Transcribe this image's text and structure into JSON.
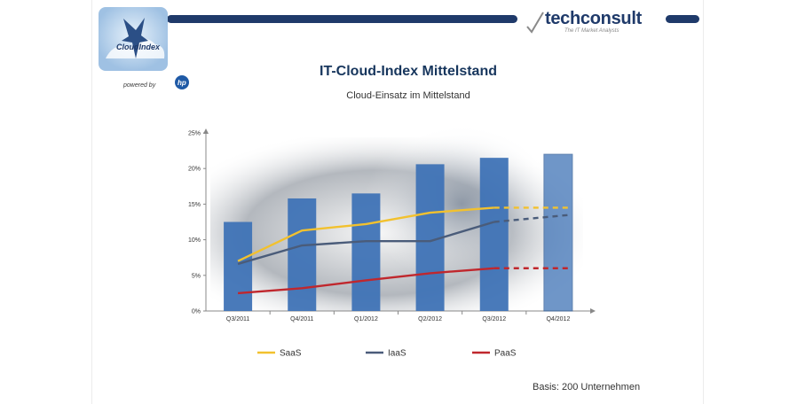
{
  "header": {
    "brand": "techconsult",
    "tagline": "The IT Market Analysts"
  },
  "cloud_logo": {
    "label": "CloudIndex",
    "powered_by": "powered by",
    "hp": "hp"
  },
  "footer": {
    "basis": "Basis: 200 Unternehmen"
  },
  "colors": {
    "bar": "#3f73b6",
    "saas": "#f2c12e",
    "iaas": "#4a5c7a",
    "paas": "#c0272d"
  },
  "chart_data": {
    "type": "bar",
    "title": "IT-Cloud-Index Mittelstand",
    "subtitle": "Cloud-Einsatz im Mittelstand",
    "categories": [
      "Q3/2011",
      "Q4/2011",
      "Q1/2012",
      "Q2/2012",
      "Q3/2012",
      "Q4/2012"
    ],
    "values": [
      12.5,
      15.8,
      16.5,
      20.6,
      21.5,
      22
    ],
    "forecast_index": 5,
    "yticks": [
      "0%",
      "5%",
      "10%",
      "15%",
      "20%",
      "25%"
    ],
    "ylim": [
      0,
      25
    ],
    "lines": [
      {
        "name": "SaaS",
        "color": "#f2c12e",
        "values": [
          7,
          11.3,
          12.2,
          13.8,
          14.5,
          14.5
        ]
      },
      {
        "name": "IaaS",
        "color": "#4a5c7a",
        "values": [
          6.6,
          9.2,
          9.8,
          9.8,
          12.5,
          13.5
        ]
      },
      {
        "name": "PaaS",
        "color": "#c0272d",
        "values": [
          2.5,
          3.2,
          4.3,
          5.3,
          6,
          6
        ]
      }
    ]
  }
}
